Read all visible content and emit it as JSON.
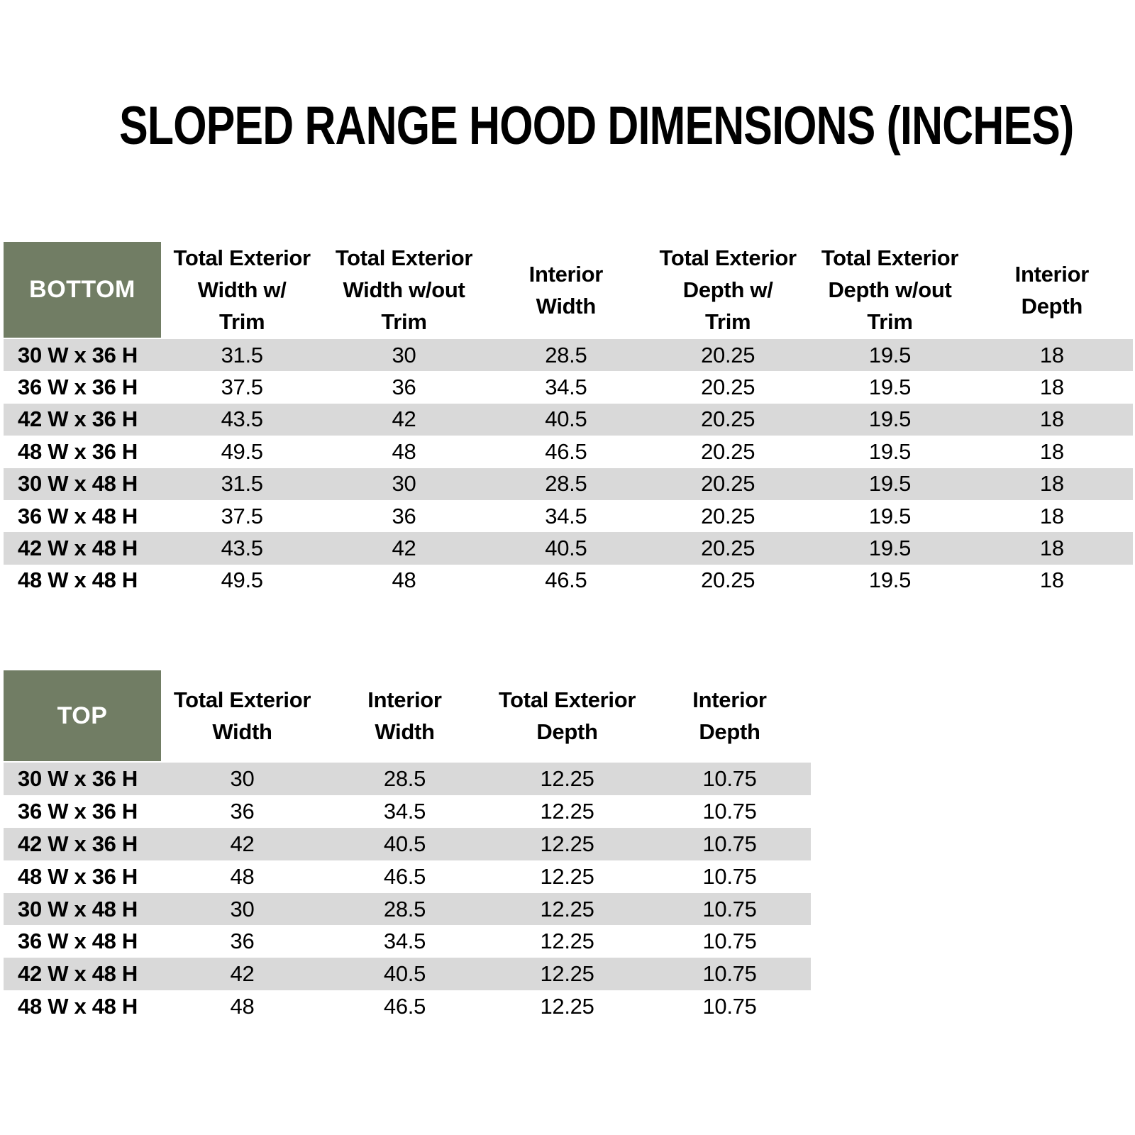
{
  "title": "SLOPED RANGE HOOD DIMENSIONS (INCHES)",
  "colors": {
    "header_green": "#717D64",
    "stripe_gray": "#D9D9D9",
    "header_text": "#FFFFFF",
    "body_text": "#000000"
  },
  "bottom_table": {
    "label": "BOTTOM",
    "columns": [
      "Total Exterior\nWidth w/\nTrim",
      "Total Exterior\nWidth w/out\nTrim",
      "Interior\nWidth",
      "Total Exterior\nDepth w/\nTrim",
      "Total Exterior\nDepth w/out\nTrim",
      "Interior\nDepth"
    ],
    "rows": [
      {
        "label": "30 W x 36 H",
        "values": [
          "31.5",
          "30",
          "28.5",
          "20.25",
          "19.5",
          "18"
        ]
      },
      {
        "label": "36 W x 36 H",
        "values": [
          "37.5",
          "36",
          "34.5",
          "20.25",
          "19.5",
          "18"
        ]
      },
      {
        "label": "42 W x 36 H",
        "values": [
          "43.5",
          "42",
          "40.5",
          "20.25",
          "19.5",
          "18"
        ]
      },
      {
        "label": "48 W x 36 H",
        "values": [
          "49.5",
          "48",
          "46.5",
          "20.25",
          "19.5",
          "18"
        ]
      },
      {
        "label": "30 W x 48 H",
        "values": [
          "31.5",
          "30",
          "28.5",
          "20.25",
          "19.5",
          "18"
        ]
      },
      {
        "label": "36 W x 48 H",
        "values": [
          "37.5",
          "36",
          "34.5",
          "20.25",
          "19.5",
          "18"
        ]
      },
      {
        "label": "42 W x 48 H",
        "values": [
          "43.5",
          "42",
          "40.5",
          "20.25",
          "19.5",
          "18"
        ]
      },
      {
        "label": "48 W x 48 H",
        "values": [
          "49.5",
          "48",
          "46.5",
          "20.25",
          "19.5",
          "18"
        ]
      }
    ]
  },
  "top_table": {
    "label": "TOP",
    "columns": [
      "Total Exterior\nWidth",
      "Interior\nWidth",
      "Total Exterior\nDepth",
      "Interior\nDepth"
    ],
    "rows": [
      {
        "label": "30 W x 36 H",
        "values": [
          "30",
          "28.5",
          "12.25",
          "10.75"
        ]
      },
      {
        "label": "36 W x 36 H",
        "values": [
          "36",
          "34.5",
          "12.25",
          "10.75"
        ]
      },
      {
        "label": "42 W x 36 H",
        "values": [
          "42",
          "40.5",
          "12.25",
          "10.75"
        ]
      },
      {
        "label": "48 W x 36 H",
        "values": [
          "48",
          "46.5",
          "12.25",
          "10.75"
        ]
      },
      {
        "label": "30 W x 48 H",
        "values": [
          "30",
          "28.5",
          "12.25",
          "10.75"
        ]
      },
      {
        "label": "36 W x 48 H",
        "values": [
          "36",
          "34.5",
          "12.25",
          "10.75"
        ]
      },
      {
        "label": "42 W x 48 H",
        "values": [
          "42",
          "40.5",
          "12.25",
          "10.75"
        ]
      },
      {
        "label": "48 W x 48 H",
        "values": [
          "48",
          "46.5",
          "12.25",
          "10.75"
        ]
      }
    ]
  }
}
